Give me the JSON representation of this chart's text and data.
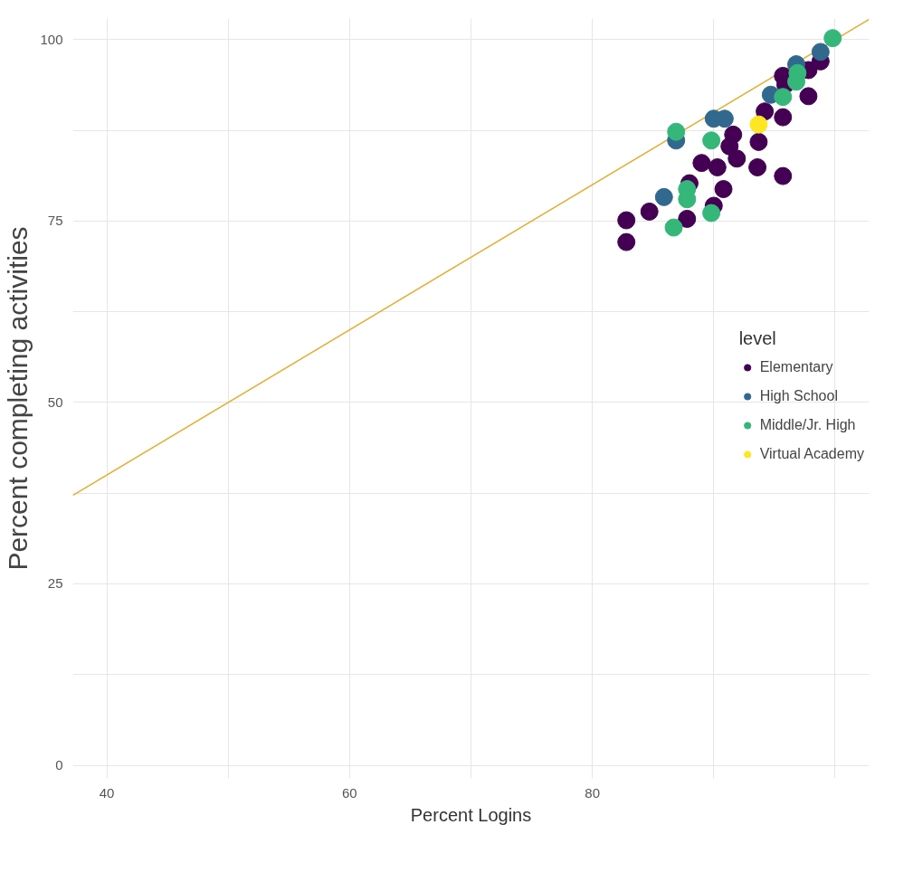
{
  "chart_data": {
    "type": "scatter",
    "xlabel": "Percent Logins",
    "ylabel": "Percent completing activities",
    "legend_title": "level",
    "legend": "right",
    "grid": true,
    "marker": "circle",
    "xlim": [
      37.2,
      102.8
    ],
    "ylim": [
      -1.8,
      102.9
    ],
    "xticks": [
      40,
      {
        "value": 50,
        "label": null
      },
      60,
      {
        "value": 70,
        "label": null
      },
      80,
      {
        "value": 90,
        "label": null
      },
      {
        "value": 100,
        "label": null
      }
    ],
    "yticks": [
      0,
      {
        "value": 12.5,
        "label": null
      },
      25,
      {
        "value": 37.5,
        "label": null
      },
      50,
      {
        "value": 62.5,
        "label": null
      },
      75,
      {
        "value": 87.5,
        "label": null
      },
      100
    ],
    "series": [
      {
        "name": "Elementary",
        "color": "#440154",
        "x": [
          82.8,
          82.8,
          84.7,
          87.8,
          88.0,
          90.8,
          90.0,
          89.0,
          90.3,
          91.3,
          91.9,
          93.6,
          95.7,
          93.7,
          94.2,
          95.7,
          95.7,
          95.9,
          97.8,
          97.8,
          98.8,
          91.6
        ],
        "values": [
          75.1,
          72.1,
          76.3,
          75.3,
          80.2,
          79.4,
          77.1,
          83.0,
          82.4,
          85.3,
          83.6,
          82.4,
          81.2,
          85.9,
          90.1,
          89.3,
          95.0,
          93.8,
          92.2,
          95.8,
          97.0,
          86.9
        ]
      },
      {
        "name": "High School",
        "color": "#31688e",
        "x": [
          85.9,
          86.9,
          90.0,
          90.9,
          94.7,
          96.8,
          98.8
        ],
        "values": [
          78.3,
          86.1,
          89.1,
          89.1,
          92.4,
          96.6,
          98.3
        ]
      },
      {
        "name": "Middle/Jr. High",
        "color": "#35b779",
        "x": [
          86.9,
          86.7,
          87.8,
          87.8,
          89.8,
          89.8,
          95.7,
          96.8,
          96.9,
          99.8
        ],
        "values": [
          87.3,
          74.1,
          79.4,
          78.0,
          76.1,
          86.1,
          92.1,
          94.2,
          95.4,
          100.2
        ]
      },
      {
        "name": "Virtual Academy",
        "color": "#fde725",
        "x": [
          93.7
        ],
        "values": [
          88.3
        ]
      },
      {
        "type": "line",
        "marker": "none",
        "color": "#e6ad2e",
        "x": [
          37.2,
          102.8
        ],
        "values": [
          37.2,
          102.8
        ]
      }
    ]
  }
}
